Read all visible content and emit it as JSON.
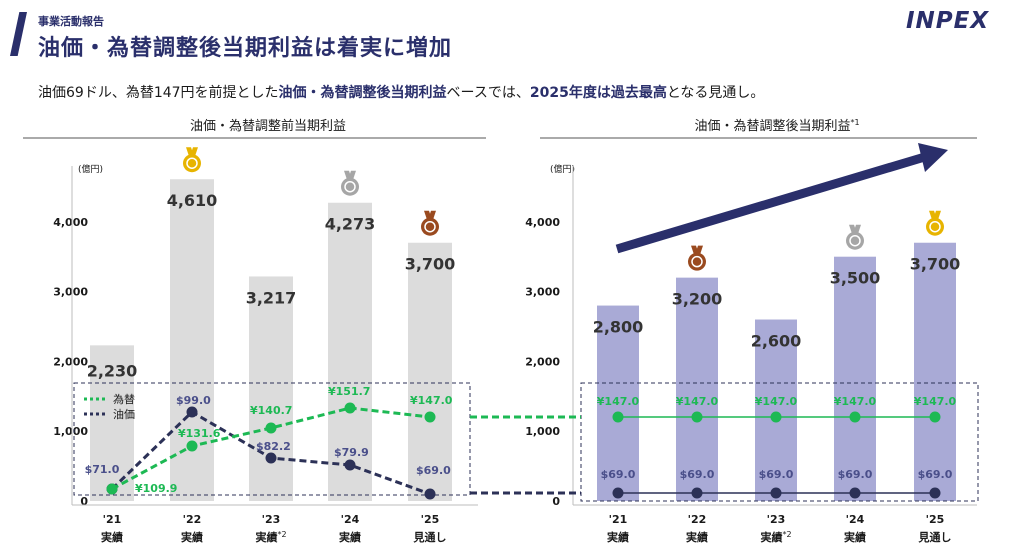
{
  "header": {
    "section": "事業活動報告",
    "title": "油価・為替調整後当期利益は着実に増加",
    "logo": "INPEX"
  },
  "lead": {
    "t1": "油価69ドル、為替147円を前提とした",
    "h1": "油価・為替調整後当期利益",
    "t2": "ベースでは、",
    "h2": "2025年度は過去最高",
    "t3": "となる見通し。"
  },
  "colors": {
    "left_bar": "#dcdcdc",
    "right_bar": "#a9aad6",
    "fx_line": "#1db954",
    "oil_line": "#2c3157",
    "arrow": "#2a2f6b",
    "gold": "#e7b400",
    "silver": "#a6a6a6",
    "bronze": "#9a4a1f"
  },
  "chart_data": [
    {
      "type": "bar",
      "title": "油価・為替調整前当期利益",
      "ylabel": "(億円)",
      "ylim": [
        0,
        4700
      ],
      "yticks": [
        "0",
        "1,000",
        "2,000",
        "3,000",
        "4,000"
      ],
      "categories": [
        "'21",
        "'22",
        "'23",
        "'24",
        "'25"
      ],
      "category_sublabels": [
        "実績",
        "実績",
        "実績",
        "実績",
        "見通し"
      ],
      "category_notes": [
        "",
        "",
        "*2",
        "",
        ""
      ],
      "values": [
        2230,
        4610,
        3217,
        4273,
        3700
      ],
      "value_labels": [
        "2,230",
        "4,610",
        "3,217",
        "4,273",
        "3,700"
      ],
      "medals": [
        "",
        "gold",
        "",
        "silver",
        "bronze"
      ],
      "legend": [
        {
          "name": "為替",
          "style": "dotted green"
        },
        {
          "name": "油価",
          "style": "dotted navy"
        }
      ],
      "overlay_series": [
        {
          "name": "為替",
          "values": [
            109.9,
            131.6,
            140.7,
            151.7,
            147.0
          ],
          "labels": [
            "¥109.9",
            "¥131.6",
            "¥140.7",
            "¥151.7",
            "¥147.0"
          ]
        },
        {
          "name": "油価",
          "values": [
            71.0,
            99.0,
            82.2,
            79.9,
            69.0
          ],
          "labels": [
            "$71.0",
            "$99.0",
            "$82.2",
            "$79.9",
            "$69.0"
          ]
        }
      ]
    },
    {
      "type": "bar",
      "title": "油価・為替調整後当期利益",
      "title_note": "*1",
      "ylabel": "(億円)",
      "ylim": [
        0,
        4700
      ],
      "yticks": [
        "0",
        "1,000",
        "2,000",
        "3,000",
        "4,000"
      ],
      "categories": [
        "'21",
        "'22",
        "'23",
        "'24",
        "'25"
      ],
      "category_sublabels": [
        "実績",
        "実績",
        "実績",
        "実績",
        "見通し"
      ],
      "category_notes": [
        "",
        "",
        "*2",
        "",
        ""
      ],
      "values": [
        2800,
        3200,
        2600,
        3500,
        3700
      ],
      "value_labels": [
        "2,800",
        "3,200",
        "2,600",
        "3,500",
        "3,700"
      ],
      "medals": [
        "",
        "bronze",
        "",
        "silver",
        "gold"
      ],
      "overlay_series": [
        {
          "name": "為替",
          "values": [
            147.0,
            147.0,
            147.0,
            147.0,
            147.0
          ],
          "labels": [
            "¥147.0",
            "¥147.0",
            "¥147.0",
            "¥147.0",
            "¥147.0"
          ]
        },
        {
          "name": "油価",
          "values": [
            69.0,
            69.0,
            69.0,
            69.0,
            69.0
          ],
          "labels": [
            "$69.0",
            "$69.0",
            "$69.0",
            "$69.0",
            "$69.0"
          ]
        }
      ]
    }
  ]
}
